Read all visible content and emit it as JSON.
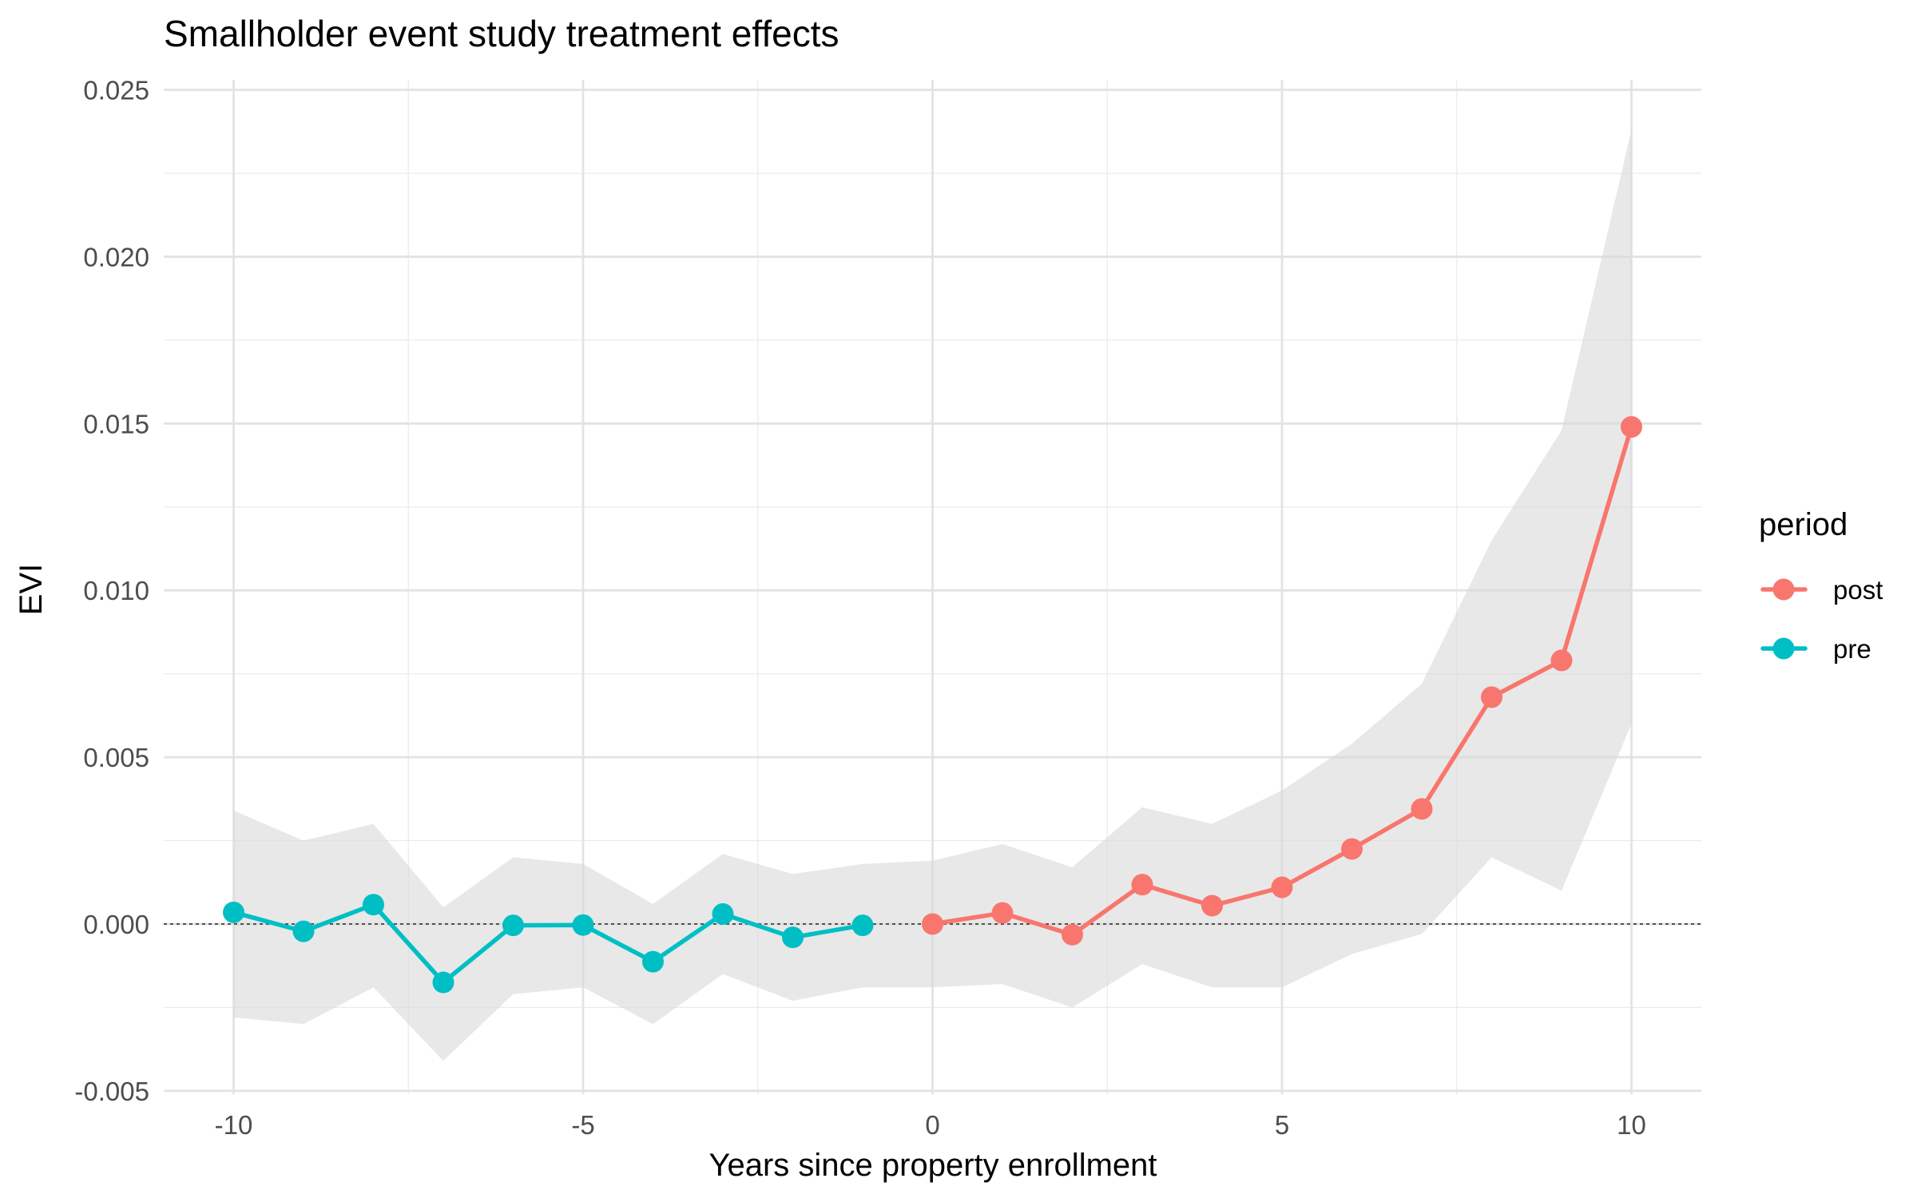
{
  "chart_data": {
    "type": "line",
    "title": "Smallholder event study treatment effects",
    "xlabel": "Years since property enrollment",
    "ylabel": "EVI",
    "xlim": [
      -11,
      11
    ],
    "ylim": [
      -0.0051,
      0.0253
    ],
    "x_ticks": [
      -10,
      -5,
      0,
      5,
      10
    ],
    "x_tick_labels": [
      "-10",
      "-5",
      "0",
      "5",
      "10"
    ],
    "y_ticks": [
      -0.005,
      0.0,
      0.005,
      0.01,
      0.015,
      0.02,
      0.025
    ],
    "y_tick_labels": [
      "-0.005",
      "0.000",
      "0.005",
      "0.010",
      "0.015",
      "0.020",
      "0.025"
    ],
    "grid": true,
    "reference_line_y": 0,
    "legend": {
      "title": "period",
      "placement": "right",
      "entries": [
        {
          "name": "post",
          "color": "#F8766D"
        },
        {
          "name": "pre",
          "color": "#00BFC4"
        }
      ]
    },
    "series": [
      {
        "name": "pre",
        "color": "#00BFC4",
        "x": [
          -10,
          -9,
          -8,
          -7,
          -6,
          -5,
          -4,
          -3,
          -2,
          -1
        ],
        "y": [
          0.00035,
          -0.00022,
          0.00058,
          -0.00175,
          -4e-05,
          -3e-05,
          -0.00113,
          0.0003,
          -0.0004,
          -4e-05
        ],
        "ci_lower": [
          -0.0028,
          -0.003,
          -0.0019,
          -0.0041,
          -0.0021,
          -0.0019,
          -0.003,
          -0.0015,
          -0.0023,
          -0.0019
        ],
        "ci_upper": [
          0.0034,
          0.0025,
          0.003,
          0.0005,
          0.002,
          0.0018,
          0.0006,
          0.0021,
          0.0015,
          0.0018
        ]
      },
      {
        "name": "post",
        "color": "#F8766D",
        "x": [
          0,
          1,
          2,
          3,
          4,
          5,
          6,
          7,
          8,
          9,
          10
        ],
        "y": [
          0.0,
          0.00033,
          -0.00032,
          0.00118,
          0.00055,
          0.0011,
          0.00225,
          0.00345,
          0.0068,
          0.0079,
          0.0149
        ],
        "ci_lower": [
          -0.0019,
          -0.0018,
          -0.0025,
          -0.0012,
          -0.0019,
          -0.0019,
          -0.0009,
          -0.0003,
          0.002,
          0.001,
          0.006
        ],
        "ci_upper": [
          0.0019,
          0.0024,
          0.0017,
          0.0035,
          0.003,
          0.004,
          0.0054,
          0.0072,
          0.0115,
          0.0148,
          0.0238
        ]
      }
    ]
  }
}
